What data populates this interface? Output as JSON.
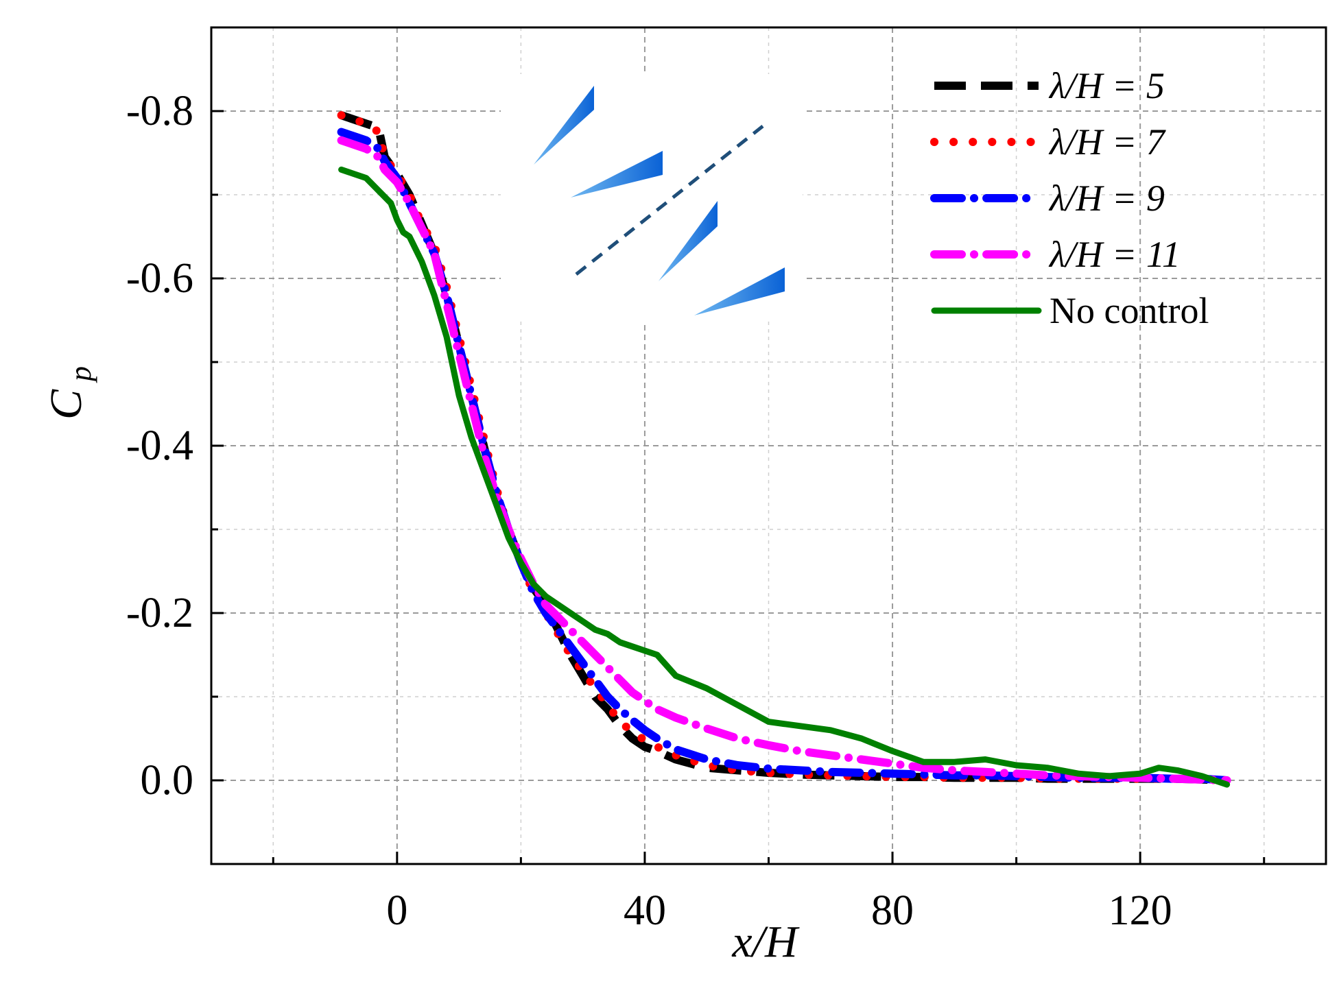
{
  "chart_data": {
    "type": "line",
    "title": "",
    "xlabel": "x/H",
    "ylabel_main": "C",
    "ylabel_sub": "p",
    "xlim": [
      -30,
      150
    ],
    "ylim": [
      -0.9,
      0.1
    ],
    "y_inverted": true,
    "xticks": [
      0,
      40,
      80,
      120
    ],
    "xtick_labels": [
      "0",
      "40",
      "80",
      "120"
    ],
    "xminor": [
      -20,
      20,
      60,
      100,
      140
    ],
    "yticks": [
      -0.8,
      -0.6,
      -0.4,
      -0.2,
      0.0
    ],
    "ytick_labels": [
      "-0.8",
      "-0.6",
      "-0.4",
      "-0.2",
      "0.0"
    ],
    "yminor": [
      -0.7,
      -0.5,
      -0.3,
      -0.1
    ],
    "grid": true,
    "legend_position": "top-right",
    "inset": "vortex generator vanes schematic",
    "series": [
      {
        "name": "λ/H = 5",
        "color": "#000000",
        "dash": "dashed",
        "x": [
          -9,
          -7,
          -5,
          -3,
          -2,
          0,
          2,
          4,
          6,
          8,
          10,
          12,
          14,
          16,
          18,
          20,
          22,
          24,
          26,
          28,
          30,
          32,
          34,
          36,
          38,
          40,
          42,
          45,
          50,
          55,
          60,
          65,
          70,
          75,
          80,
          85,
          90,
          95,
          100,
          105,
          110,
          115,
          120,
          125,
          130,
          134
        ],
        "y": [
          -0.795,
          -0.79,
          -0.785,
          -0.78,
          -0.745,
          -0.725,
          -0.7,
          -0.665,
          -0.63,
          -0.58,
          -0.52,
          -0.46,
          -0.4,
          -0.34,
          -0.3,
          -0.26,
          -0.23,
          -0.21,
          -0.18,
          -0.15,
          -0.125,
          -0.1,
          -0.085,
          -0.065,
          -0.05,
          -0.04,
          -0.035,
          -0.025,
          -0.015,
          -0.012,
          -0.009,
          -0.007,
          -0.006,
          -0.005,
          -0.004,
          -0.004,
          -0.003,
          -0.003,
          -0.003,
          -0.002,
          -0.002,
          -0.002,
          -0.002,
          -0.002,
          -0.001,
          0.0
        ]
      },
      {
        "name": "λ/H = 7",
        "color": "#ff0000",
        "dash": "dotted",
        "x": [
          -9,
          -7,
          -5,
          -3,
          -2,
          0,
          2,
          4,
          6,
          8,
          10,
          12,
          14,
          16,
          18,
          20,
          22,
          24,
          26,
          28,
          30,
          32,
          34,
          36,
          38,
          40,
          42,
          45,
          50,
          55,
          60,
          65,
          70,
          75,
          80,
          85,
          90,
          95,
          100,
          105,
          110,
          115,
          120,
          125,
          130,
          134
        ],
        "y": [
          -0.795,
          -0.79,
          -0.785,
          -0.775,
          -0.745,
          -0.725,
          -0.7,
          -0.665,
          -0.64,
          -0.59,
          -0.53,
          -0.47,
          -0.41,
          -0.35,
          -0.3,
          -0.26,
          -0.225,
          -0.2,
          -0.175,
          -0.15,
          -0.13,
          -0.11,
          -0.09,
          -0.07,
          -0.058,
          -0.048,
          -0.04,
          -0.03,
          -0.018,
          -0.012,
          -0.009,
          -0.007,
          -0.006,
          -0.005,
          -0.004,
          -0.004,
          -0.003,
          -0.003,
          -0.003,
          -0.002,
          -0.002,
          -0.002,
          -0.002,
          -0.002,
          -0.001,
          0.0
        ]
      },
      {
        "name": "λ/H = 9",
        "color": "#0000ff",
        "dash": "dash-dot",
        "x": [
          -9,
          -7,
          -5,
          -3,
          -2,
          0,
          2,
          4,
          6,
          8,
          10,
          12,
          14,
          16,
          18,
          20,
          22,
          24,
          26,
          28,
          30,
          32,
          34,
          36,
          38,
          40,
          42,
          45,
          50,
          55,
          60,
          65,
          70,
          75,
          80,
          85,
          90,
          95,
          100,
          105,
          110,
          115,
          120,
          125,
          130,
          134
        ],
        "y": [
          -0.775,
          -0.77,
          -0.765,
          -0.755,
          -0.74,
          -0.72,
          -0.69,
          -0.66,
          -0.63,
          -0.58,
          -0.52,
          -0.46,
          -0.4,
          -0.345,
          -0.3,
          -0.26,
          -0.225,
          -0.2,
          -0.18,
          -0.16,
          -0.14,
          -0.12,
          -0.1,
          -0.085,
          -0.072,
          -0.06,
          -0.05,
          -0.037,
          -0.025,
          -0.018,
          -0.014,
          -0.012,
          -0.01,
          -0.009,
          -0.008,
          -0.007,
          -0.006,
          -0.006,
          -0.005,
          -0.004,
          -0.003,
          -0.003,
          -0.003,
          -0.002,
          -0.002,
          0.0
        ]
      },
      {
        "name": "λ/H = 11",
        "color": "#ff00ff",
        "dash": "dash-dot",
        "x": [
          -9,
          -7,
          -5,
          -3,
          -2,
          0,
          2,
          4,
          6,
          8,
          10,
          12,
          14,
          16,
          18,
          20,
          22,
          24,
          26,
          28,
          30,
          32,
          34,
          36,
          38,
          40,
          42,
          45,
          50,
          55,
          60,
          65,
          70,
          75,
          80,
          85,
          90,
          95,
          100,
          105,
          110,
          115,
          120,
          125,
          130,
          134
        ],
        "y": [
          -0.765,
          -0.76,
          -0.755,
          -0.745,
          -0.73,
          -0.715,
          -0.69,
          -0.66,
          -0.63,
          -0.57,
          -0.51,
          -0.45,
          -0.39,
          -0.34,
          -0.3,
          -0.265,
          -0.235,
          -0.21,
          -0.195,
          -0.18,
          -0.165,
          -0.15,
          -0.135,
          -0.12,
          -0.105,
          -0.095,
          -0.085,
          -0.075,
          -0.062,
          -0.05,
          -0.042,
          -0.035,
          -0.03,
          -0.025,
          -0.02,
          -0.015,
          -0.012,
          -0.01,
          -0.008,
          -0.006,
          -0.005,
          -0.004,
          -0.003,
          -0.002,
          -0.001,
          0.0
        ]
      },
      {
        "name": "No control",
        "color": "#008000",
        "dash": "solid",
        "x": [
          -9,
          -7,
          -5,
          -3,
          -1,
          0,
          1,
          2,
          4,
          6,
          8,
          10,
          12,
          14,
          16,
          18,
          20,
          22,
          24,
          26,
          28,
          30,
          32,
          34,
          36,
          38,
          40,
          42,
          45,
          50,
          55,
          60,
          65,
          70,
          75,
          80,
          85,
          90,
          95,
          100,
          105,
          110,
          115,
          120,
          123,
          126,
          130,
          134
        ],
        "y": [
          -0.73,
          -0.725,
          -0.72,
          -0.705,
          -0.69,
          -0.67,
          -0.655,
          -0.65,
          -0.62,
          -0.58,
          -0.53,
          -0.46,
          -0.41,
          -0.37,
          -0.33,
          -0.29,
          -0.26,
          -0.235,
          -0.22,
          -0.21,
          -0.2,
          -0.19,
          -0.18,
          -0.175,
          -0.165,
          -0.16,
          -0.155,
          -0.15,
          -0.125,
          -0.11,
          -0.09,
          -0.07,
          -0.065,
          -0.06,
          -0.05,
          -0.035,
          -0.022,
          -0.022,
          -0.025,
          -0.018,
          -0.015,
          -0.008,
          -0.005,
          -0.008,
          -0.015,
          -0.012,
          -0.005,
          0.005
        ]
      }
    ]
  }
}
